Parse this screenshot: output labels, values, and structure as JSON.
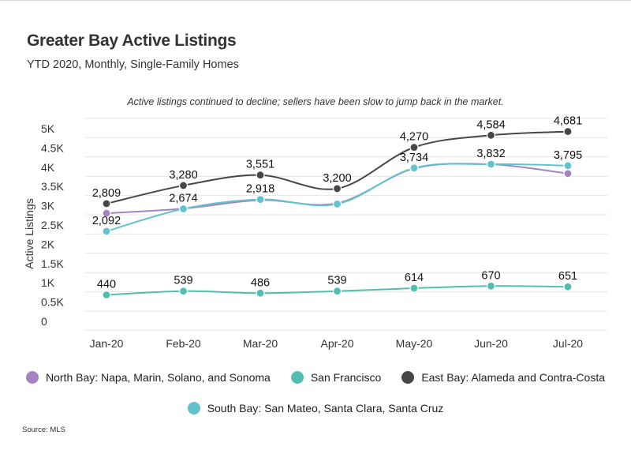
{
  "header": {
    "title": "Greater Bay Active Listings",
    "subtitle": "YTD 2020, Monthly, Single-Family Homes",
    "annotation": "Active listings continued to decline; sellers have been slow to jump back in the market."
  },
  "source": "Source: MLS",
  "chart_data": {
    "type": "line",
    "categories": [
      "Jan-20",
      "Feb-20",
      "Mar-20",
      "Apr-20",
      "May-20",
      "Jun-20",
      "Jul-20"
    ],
    "ylabel": "Active Listings",
    "xlabel": "",
    "ylim": [
      0,
      5000
    ],
    "yticks": [
      0,
      500,
      1000,
      1500,
      2000,
      2500,
      3000,
      3500,
      4000,
      4500,
      5000
    ],
    "ytick_labels": [
      "0",
      "0.5K",
      "1K",
      "1.5K",
      "2K",
      "2.5K",
      "3K",
      "3.5K",
      "4K",
      "4.5K",
      "5K"
    ],
    "grid": true,
    "legend_position": "bottom",
    "series": [
      {
        "name": "North Bay: Napa, Marin, Solano, and Sonoma",
        "color": "#a484c0",
        "values": [
          2560,
          2680,
          2900,
          2820,
          3720,
          3830,
          3590
        ],
        "labels": []
      },
      {
        "name": "San Francisco",
        "color": "#52bfae",
        "values": [
          440,
          539,
          486,
          539,
          614,
          670,
          651
        ],
        "labels": [
          "440",
          "539",
          "486",
          "539",
          "614",
          "670",
          "651"
        ]
      },
      {
        "name": "East Bay: Alameda and Contra-Costa",
        "color": "#474747",
        "values": [
          2809,
          3280,
          3551,
          3200,
          4270,
          4584,
          4681
        ],
        "labels": [
          "2,809",
          "3,280",
          "3,551",
          "3,200",
          "4,270",
          "4,584",
          "4,681"
        ]
      },
      {
        "name": "South Bay: San Mateo, Santa Clara, Santa Cruz",
        "color": "#62c3cc",
        "values": [
          2092,
          2674,
          2918,
          2800,
          3734,
          3832,
          3795
        ],
        "labels": [
          "2,092",
          "2,674",
          "2,918",
          "",
          "3,734",
          "3,832",
          "3,795"
        ]
      }
    ]
  }
}
